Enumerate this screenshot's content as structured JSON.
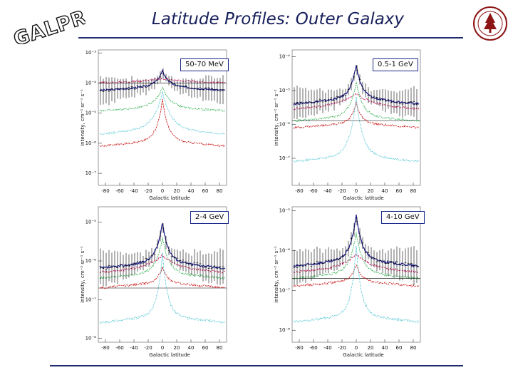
{
  "logo_text": "GALPROP",
  "title": "Latitude Profiles: Outer Galaxy",
  "colors": {
    "title": "#161e5a",
    "rule": "#1f2b6e",
    "data": "#000000",
    "total": "#1c1c8a",
    "ic": "#cc2266",
    "pi0": "#22aa44",
    "bremss": "#cc2222",
    "iso": "#33bbcc"
  },
  "chart_data": [
    {
      "type": "line",
      "scale_y": "log",
      "energy_label": "50-70 MeV",
      "x_ticks": [
        "-80",
        "-60",
        "-40",
        "-20",
        "0",
        "20",
        "40",
        "60",
        "80"
      ],
      "y_ticks": [
        "10⁻³",
        "10⁻⁴",
        "10⁻⁵",
        "10⁻⁶",
        "10⁻⁷"
      ],
      "xlabel": "Galactic latitude",
      "ylabel": "intensity, cm⁻² sr⁻¹ s⁻¹",
      "xlim": [
        -90,
        90
      ],
      "ylog": [
        -7.4,
        -2.9
      ],
      "horizontal_line": -4.0,
      "series": [
        {
          "role": "total",
          "base": -4.1,
          "peak": 0.5,
          "width": 9,
          "edge": 0.15
        },
        {
          "role": "ic",
          "base": -3.95,
          "peak": 0.1,
          "width": 30,
          "edge": 0.05
        },
        {
          "role": "pi0",
          "base": -4.8,
          "peak": 0.65,
          "width": 11,
          "edge": 0.12
        },
        {
          "role": "bremss",
          "base": -5.9,
          "peak": 1.35,
          "width": 8,
          "edge": 0.2
        },
        {
          "role": "iso",
          "base": -5.5,
          "peak": 1.2,
          "width": 12,
          "edge": 0.2
        }
      ]
    },
    {
      "type": "line",
      "scale_y": "log",
      "energy_label": "0.5-1 GeV",
      "x_ticks": [
        "-80",
        "-60",
        "-40",
        "-20",
        "0",
        "20",
        "40",
        "60",
        "80"
      ],
      "y_ticks": [
        "10⁻⁴",
        "10⁻⁵",
        "10⁻⁶",
        "10⁻⁷"
      ],
      "xlabel": "Galactic latitude",
      "ylabel": "intensity, cm⁻² sr⁻¹ s⁻¹",
      "xlim": [
        -90,
        90
      ],
      "ylog": [
        -7.8,
        -3.8
      ],
      "horizontal_line": -5.9,
      "series": [
        {
          "role": "total",
          "base": -5.2,
          "peak": 0.95,
          "width": 8,
          "edge": 0.2
        },
        {
          "role": "ic",
          "base": -5.45,
          "peak": 0.35,
          "width": 25,
          "edge": 0.1
        },
        {
          "role": "pi0",
          "base": -5.75,
          "peak": 1.0,
          "width": 9,
          "edge": 0.15
        },
        {
          "role": "bremss",
          "base": -5.95,
          "peak": 0.6,
          "width": 7,
          "edge": 0.15
        },
        {
          "role": "iso",
          "base": -6.9,
          "peak": 1.7,
          "width": 9,
          "edge": 0.2
        }
      ]
    },
    {
      "type": "line",
      "scale_y": "log",
      "energy_label": "2-4 GeV",
      "x_ticks": [
        "-80",
        "-60",
        "-40",
        "-20",
        "0",
        "20",
        "40",
        "60",
        "80"
      ],
      "y_ticks": [
        "10⁻⁵",
        "10⁻⁶",
        "10⁻⁷",
        "10⁻⁸"
      ],
      "xlabel": "Galactic latitude",
      "ylabel": "intensity, cm⁻² sr⁻¹ s⁻¹",
      "xlim": [
        -90,
        90
      ],
      "ylog": [
        -8.1,
        -4.6
      ],
      "horizontal_line": -6.7,
      "series": [
        {
          "role": "total",
          "base": -6.0,
          "peak": 1.0,
          "width": 8,
          "edge": 0.2
        },
        {
          "role": "ic",
          "base": -6.2,
          "peak": 0.35,
          "width": 22,
          "edge": 0.1
        },
        {
          "role": "pi0",
          "base": -6.3,
          "peak": 0.9,
          "width": 9,
          "edge": 0.15
        },
        {
          "role": "bremss",
          "base": -6.55,
          "peak": 0.4,
          "width": 7,
          "edge": 0.15
        },
        {
          "role": "iso",
          "base": -7.4,
          "peak": 1.6,
          "width": 7,
          "edge": 0.2
        }
      ]
    },
    {
      "type": "line",
      "scale_y": "log",
      "energy_label": "4-10 GeV",
      "x_ticks": [
        "-80",
        "-60",
        "-40",
        "-20",
        "0",
        "20",
        "40",
        "60",
        "80"
      ],
      "y_ticks": [
        "10⁻⁵",
        "10⁻⁶",
        "10⁻⁷",
        "10⁻⁸"
      ],
      "xlabel": "Galactic latitude",
      "ylabel": "intensity, cm⁻² sr⁻¹ s⁻¹",
      "xlim": [
        -90,
        90
      ],
      "ylog": [
        -8.3,
        -4.9
      ],
      "horizontal_line": -6.7,
      "series": [
        {
          "role": "total",
          "base": -6.2,
          "peak": 1.1,
          "width": 8,
          "edge": 0.2
        },
        {
          "role": "ic",
          "base": -6.45,
          "peak": 0.35,
          "width": 22,
          "edge": 0.1
        },
        {
          "role": "pi0",
          "base": -6.55,
          "peak": 1.0,
          "width": 9,
          "edge": 0.15
        },
        {
          "role": "bremss",
          "base": -6.75,
          "peak": 0.4,
          "width": 7,
          "edge": 0.15
        },
        {
          "role": "iso",
          "base": -7.6,
          "peak": 1.7,
          "width": 7,
          "edge": 0.2
        }
      ]
    }
  ]
}
